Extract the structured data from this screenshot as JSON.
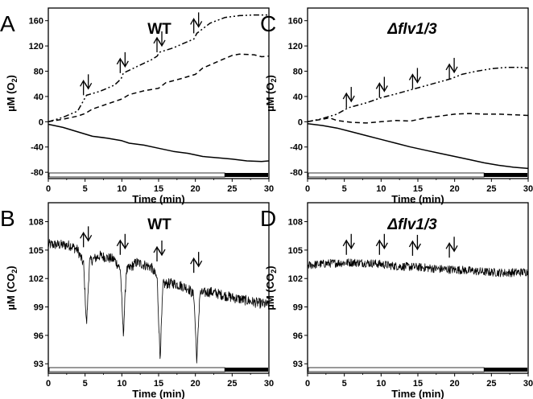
{
  "chart_data": [
    {
      "panel": "A",
      "title": "WT",
      "title_style": "plain",
      "type": "line",
      "xlabel": "Time (min)",
      "ylabel": "µM (O2)",
      "ylabel_main": "µM (O",
      "ylabel_sub": "2",
      "ylabel_end": ")",
      "xlim": [
        0,
        30
      ],
      "ylim": [
        -90,
        180
      ],
      "xticks": [
        0,
        5,
        10,
        15,
        20,
        25,
        30
      ],
      "yticks": [
        -80,
        -40,
        0,
        40,
        80,
        120,
        160
      ],
      "light_bar": {
        "light_until": 24,
        "dark_until": 30
      },
      "series": [
        {
          "style": "dashdot",
          "points": [
            [
              0,
              0
            ],
            [
              2,
              7
            ],
            [
              4,
              17
            ],
            [
              4.9,
              36
            ],
            [
              5.2,
              42
            ],
            [
              7,
              48
            ],
            [
              9,
              58
            ],
            [
              9.9,
              68
            ],
            [
              10.2,
              77
            ],
            [
              12,
              87
            ],
            [
              14,
              98
            ],
            [
              14.8,
              104
            ],
            [
              15.1,
              110
            ],
            [
              17,
              117
            ],
            [
              19,
              127
            ],
            [
              19.8,
              131
            ],
            [
              20.2,
              140
            ],
            [
              22,
              156
            ],
            [
              24,
              165
            ],
            [
              26,
              168
            ],
            [
              28,
              169
            ],
            [
              30,
              169
            ]
          ]
        },
        {
          "style": "dashed",
          "points": [
            [
              0,
              0
            ],
            [
              2,
              4
            ],
            [
              4,
              9
            ],
            [
              5,
              13
            ],
            [
              6,
              20
            ],
            [
              8,
              28
            ],
            [
              10,
              36
            ],
            [
              11,
              43
            ],
            [
              13,
              49
            ],
            [
              15,
              53
            ],
            [
              16,
              62
            ],
            [
              18,
              68
            ],
            [
              20,
              75
            ],
            [
              21,
              85
            ],
            [
              23,
              95
            ],
            [
              25,
              105
            ],
            [
              26,
              107
            ],
            [
              28,
              106
            ],
            [
              29,
              103
            ],
            [
              30,
              104
            ]
          ]
        },
        {
          "style": "solid",
          "points": [
            [
              0,
              -4
            ],
            [
              2,
              -9
            ],
            [
              4,
              -16
            ],
            [
              6,
              -23
            ],
            [
              8,
              -26
            ],
            [
              10,
              -30
            ],
            [
              11,
              -34
            ],
            [
              13,
              -37
            ],
            [
              15,
              -42
            ],
            [
              17,
              -47
            ],
            [
              19,
              -50
            ],
            [
              21,
              -55
            ],
            [
              23,
              -57
            ],
            [
              25,
              -59
            ],
            [
              27,
              -62
            ],
            [
              29,
              -63
            ],
            [
              30,
              -62
            ]
          ]
        }
      ],
      "arrows": [
        5,
        10,
        15,
        20
      ],
      "arrow_y": [
        42,
        77,
        110,
        140
      ]
    },
    {
      "panel": "C",
      "title": "Δflv1/3",
      "title_style": "italic",
      "type": "line",
      "xlabel": "Time (min)",
      "ylabel": "µM (O2)",
      "ylabel_main": "µM (O",
      "ylabel_sub": "2",
      "ylabel_end": ")",
      "xlim": [
        0,
        30
      ],
      "ylim": [
        -90,
        180
      ],
      "xticks": [
        0,
        5,
        10,
        15,
        20,
        25,
        30
      ],
      "yticks": [
        -80,
        -40,
        0,
        40,
        80,
        120,
        160
      ],
      "light_bar": {
        "light_until": 24,
        "dark_until": 30
      },
      "series": [
        {
          "style": "dashdot",
          "points": [
            [
              0,
              0
            ],
            [
              2,
              5
            ],
            [
              4,
              12
            ],
            [
              5.5,
              22
            ],
            [
              8,
              30
            ],
            [
              10,
              38
            ],
            [
              12,
              44
            ],
            [
              14.5,
              52
            ],
            [
              17,
              60
            ],
            [
              19.5,
              68
            ],
            [
              21,
              75
            ],
            [
              23,
              80
            ],
            [
              25,
              84
            ],
            [
              27,
              86
            ],
            [
              29,
              86
            ],
            [
              30,
              85
            ]
          ]
        },
        {
          "style": "dashed",
          "points": [
            [
              0,
              0
            ],
            [
              2,
              4
            ],
            [
              3,
              6
            ],
            [
              4,
              2
            ],
            [
              6,
              -1
            ],
            [
              8,
              -2
            ],
            [
              10,
              0
            ],
            [
              12,
              2
            ],
            [
              14,
              1
            ],
            [
              16,
              6
            ],
            [
              18,
              9
            ],
            [
              20,
              12
            ],
            [
              22,
              13
            ],
            [
              24,
              12
            ],
            [
              26,
              12
            ],
            [
              28,
              11
            ],
            [
              30,
              10
            ]
          ]
        },
        {
          "style": "solid",
          "points": [
            [
              0,
              -3
            ],
            [
              2,
              -6
            ],
            [
              4,
              -10
            ],
            [
              6,
              -16
            ],
            [
              8,
              -22
            ],
            [
              10,
              -28
            ],
            [
              12,
              -34
            ],
            [
              14,
              -40
            ],
            [
              16,
              -45
            ],
            [
              18,
              -50
            ],
            [
              20,
              -55
            ],
            [
              22,
              -60
            ],
            [
              24,
              -65
            ],
            [
              26,
              -69
            ],
            [
              28,
              -72
            ],
            [
              30,
              -74
            ]
          ]
        }
      ],
      "arrows": [
        5.5,
        10,
        14.5,
        19.5
      ],
      "arrow_y": [
        22,
        38,
        52,
        68
      ]
    },
    {
      "panel": "B",
      "title": "WT",
      "title_style": "plain",
      "type": "line",
      "xlabel": "Time (min)",
      "ylabel": "µM (CO2)",
      "ylabel_main": "µM (CO",
      "ylabel_sub": "2",
      "ylabel_end": ")",
      "xlim": [
        0,
        30
      ],
      "ylim": [
        92,
        110
      ],
      "xticks": [
        0,
        5,
        10,
        15,
        20,
        25,
        30
      ],
      "yticks": [
        93,
        96,
        99,
        102,
        105,
        108
      ],
      "light_bar": {
        "light_until": 24,
        "dark_until": 30
      },
      "noise_amplitude": 0.55,
      "series": [
        {
          "style": "solid",
          "points": [
            [
              0,
              105.6
            ],
            [
              3,
              105.5
            ],
            [
              4,
              105.0
            ],
            [
              4.8,
              103.5
            ],
            [
              5.2,
              97
            ],
            [
              5.6,
              103.8
            ],
            [
              7,
              104.4
            ],
            [
              9,
              104.0
            ],
            [
              9.8,
              103.0
            ],
            [
              10.2,
              96
            ],
            [
              10.6,
              102.8
            ],
            [
              12,
              103.7
            ],
            [
              14,
              103.2
            ],
            [
              14.8,
              102
            ],
            [
              15.2,
              93.6
            ],
            [
              15.6,
              101.4
            ],
            [
              17,
              101.5
            ],
            [
              19,
              101.0
            ],
            [
              19.8,
              100.2
            ],
            [
              20.2,
              93.2
            ],
            [
              20.6,
              100.4
            ],
            [
              22,
              100.6
            ],
            [
              25,
              100.0
            ],
            [
              28,
              99.5
            ],
            [
              30,
              99.2
            ]
          ]
        }
      ],
      "arrows": [
        5,
        10,
        15,
        20
      ],
      "arrow_y": [
        105.3,
        104.5,
        103.8,
        102.6
      ]
    },
    {
      "panel": "D",
      "title": "Δflv1/3",
      "title_style": "italic",
      "type": "line",
      "xlabel": "Time (min)",
      "ylabel": "µM (CO2)",
      "ylabel_main": "µM (CO",
      "ylabel_sub": "2",
      "ylabel_end": ")",
      "xlim": [
        0,
        30
      ],
      "ylim": [
        92,
        110
      ],
      "xticks": [
        0,
        5,
        10,
        15,
        20,
        25,
        30
      ],
      "yticks": [
        93,
        96,
        99,
        102,
        105,
        108
      ],
      "light_bar": {
        "light_until": 24,
        "dark_until": 30
      },
      "noise_amplitude": 0.45,
      "series": [
        {
          "style": "solid",
          "points": [
            [
              0,
              103.4
            ],
            [
              3,
              103.6
            ],
            [
              6,
              103.7
            ],
            [
              9,
              103.6
            ],
            [
              12,
              103.3
            ],
            [
              15,
              103.2
            ],
            [
              18,
              103.0
            ],
            [
              21,
              102.9
            ],
            [
              24,
              102.7
            ],
            [
              27,
              102.6
            ],
            [
              30,
              102.7
            ]
          ]
        }
      ],
      "arrows": [
        5.5,
        10,
        14.5,
        19.5
      ],
      "arrow_y": [
        104.5,
        104.5,
        104.4,
        104.2
      ]
    }
  ]
}
